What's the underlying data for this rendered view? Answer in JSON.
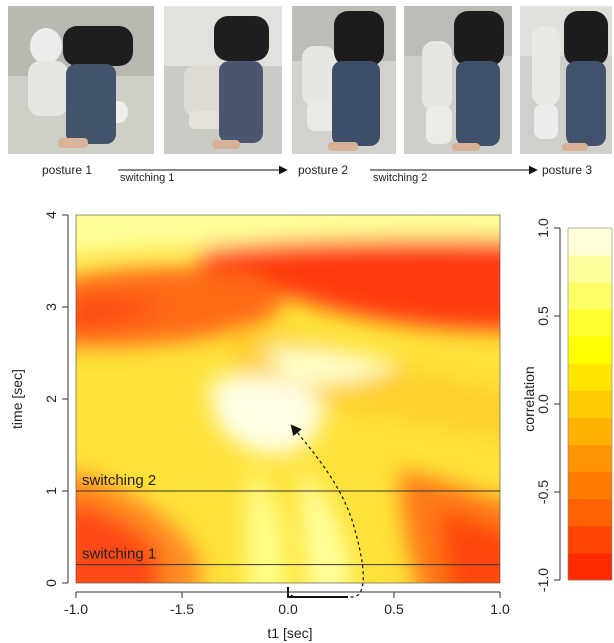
{
  "sequence": {
    "posture1": "posture 1",
    "switching1": "switching 1",
    "posture2": "posture 2",
    "switching2": "switching 2",
    "posture3": "posture 3"
  },
  "chart_data": {
    "type": "heatmap",
    "title": "",
    "xlabel": "t1 [sec]",
    "ylabel": "time [sec]",
    "x_ticks": [
      "-1.0",
      "-1.5",
      "0.0",
      "0.5",
      "1.0"
    ],
    "y_ticks": [
      "0",
      "1",
      "2",
      "3",
      "4"
    ],
    "ylim": [
      0,
      4
    ],
    "colorbar": {
      "label": "correlation",
      "range": [
        -1.0,
        1.0
      ],
      "ticks": [
        "-1.0",
        "-0.5",
        "0.0",
        "0.5",
        "1.0"
      ],
      "colors": [
        "#ff2b00",
        "#ff4500",
        "#ff6000",
        "#ff7a00",
        "#ff9500",
        "#ffb000",
        "#ffca00",
        "#ffe400",
        "#ffff00",
        "#ffff2e",
        "#ffff66",
        "#ffffa0",
        "#ffffd8"
      ]
    },
    "annotations": [
      {
        "label": "switching 1",
        "time": 0.2
      },
      {
        "label": "switching 2",
        "time": 1.0
      }
    ]
  }
}
